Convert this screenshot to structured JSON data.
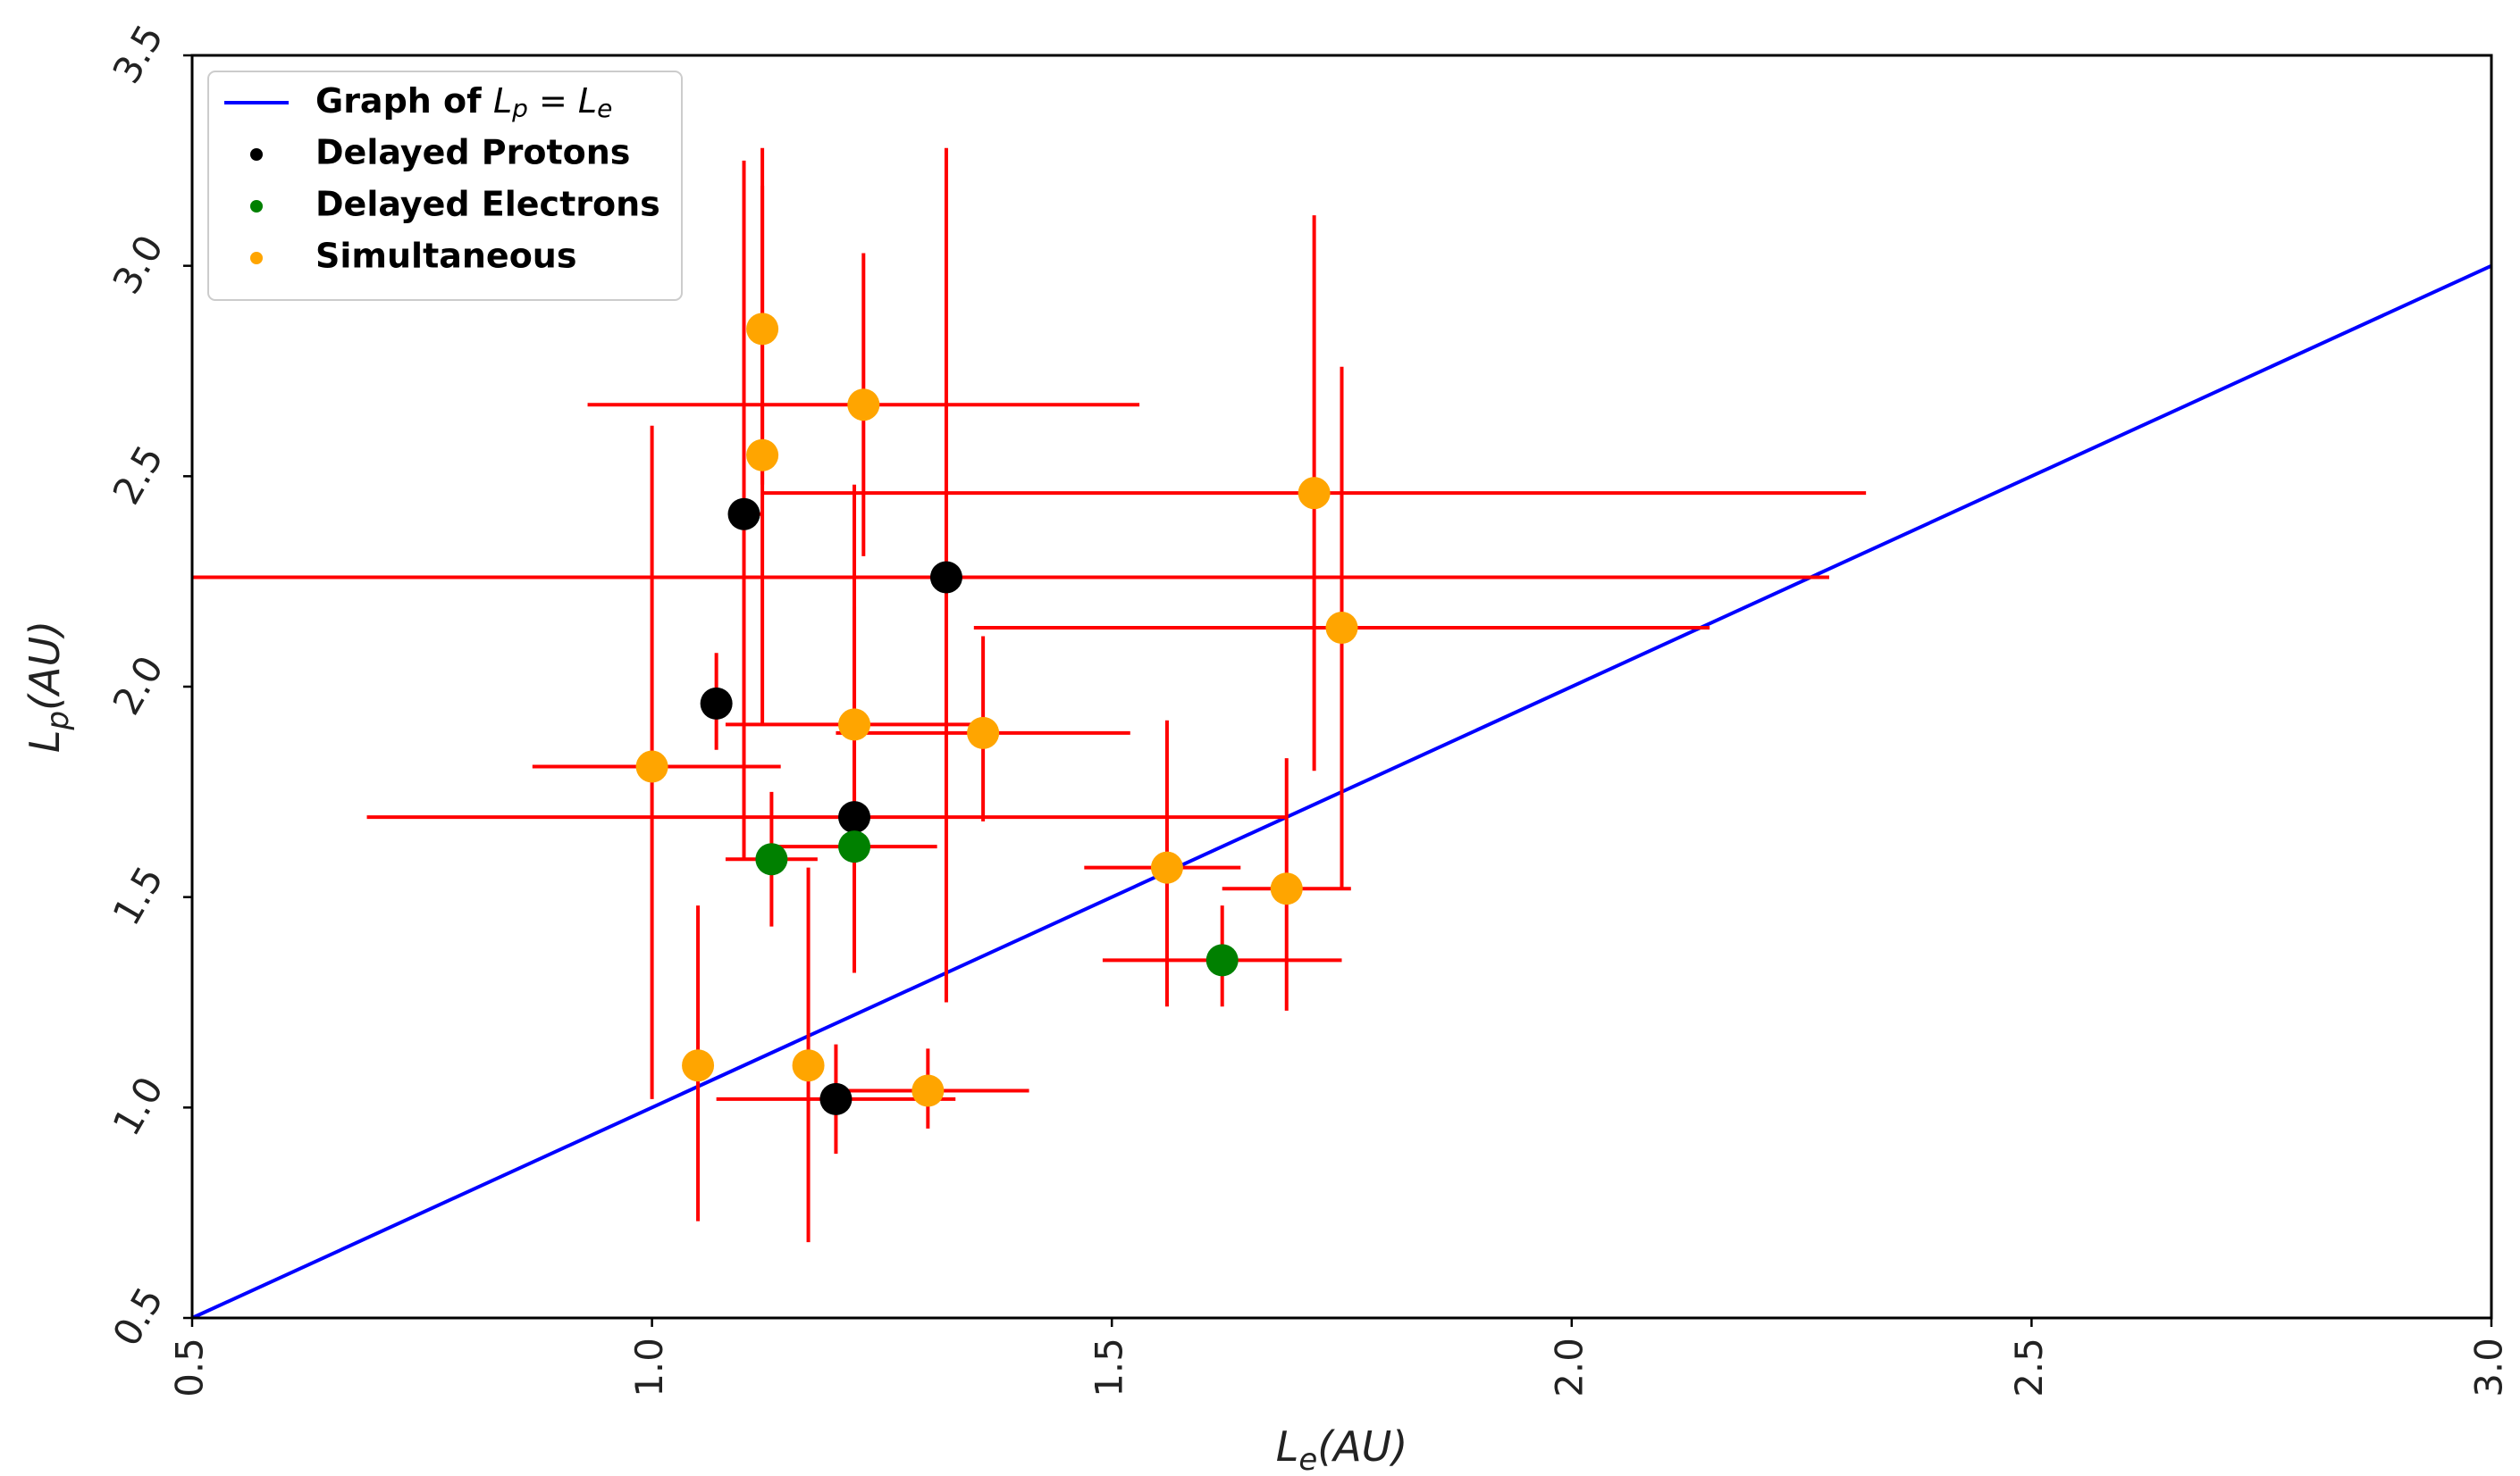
{
  "chart_data": {
    "type": "scatter",
    "xlabel": "L_e(AU)",
    "ylabel": "L_p(AU)",
    "xlim": [
      0.5,
      3.0
    ],
    "ylim": [
      0.5,
      3.5
    ],
    "xticks": [
      "0.5",
      "1.0",
      "1.5",
      "2.0",
      "2.5",
      "3.0"
    ],
    "yticks": [
      "0.5",
      "1.0",
      "1.5",
      "2.0",
      "2.5",
      "3.0",
      "3.5"
    ],
    "tick_values_x": [
      0.5,
      1.0,
      1.5,
      2.0,
      2.5,
      3.0
    ],
    "tick_values_y": [
      0.5,
      1.0,
      1.5,
      2.0,
      2.5,
      3.0,
      3.5
    ],
    "grid": false,
    "legend_position": "top-left",
    "errorbar_color": "#ff0000",
    "reference_line": {
      "name": "Graph of L_p = L_e",
      "color": "#0000ff",
      "x": [
        0.5,
        3.0
      ],
      "y": [
        0.5,
        3.0
      ]
    },
    "series": [
      {
        "name": "Delayed Protons",
        "color": "#000000",
        "points": [
          {
            "x": 1.1,
            "y": 2.41,
            "xerr": [
              1.1,
              1.12
            ],
            "yerr": [
              1.59,
              3.25
            ]
          },
          {
            "x": 1.32,
            "y": 2.26,
            "xerr": [
              0.5,
              2.28
            ],
            "yerr": [
              1.25,
              3.28
            ]
          },
          {
            "x": 1.07,
            "y": 1.96,
            "xerr": [
              1.07,
              1.07
            ],
            "yerr": [
              1.85,
              2.08
            ]
          },
          {
            "x": 1.22,
            "y": 1.69,
            "xerr": [
              0.69,
              1.69
            ],
            "yerr": [
              1.6,
              1.75
            ]
          },
          {
            "x": 1.2,
            "y": 1.02,
            "xerr": [
              1.07,
              1.33
            ],
            "yerr": [
              0.89,
              1.15
            ]
          }
        ]
      },
      {
        "name": "Delayed Electrons",
        "color": "#008000",
        "points": [
          {
            "x": 1.13,
            "y": 1.59,
            "xerr": [
              1.08,
              1.18
            ],
            "yerr": [
              1.43,
              1.75
            ]
          },
          {
            "x": 1.22,
            "y": 1.62,
            "xerr": [
              1.13,
              1.31
            ],
            "yerr": [
              1.32,
              2.48
            ]
          },
          {
            "x": 1.62,
            "y": 1.35,
            "xerr": [
              1.49,
              1.75
            ],
            "yerr": [
              1.24,
              1.48
            ]
          }
        ]
      },
      {
        "name": "Simultaneous",
        "color": "#ffa500",
        "points": [
          {
            "x": 1.12,
            "y": 2.85,
            "xerr": [
              1.12,
              1.12
            ],
            "yerr": [
              2.48,
              3.28
            ]
          },
          {
            "x": 1.23,
            "y": 2.67,
            "xerr": [
              0.93,
              1.53
            ],
            "yerr": [
              2.31,
              3.03
            ]
          },
          {
            "x": 1.12,
            "y": 2.55,
            "xerr": [
              1.12,
              1.12
            ],
            "yerr": [
              1.91,
              3.19
            ]
          },
          {
            "x": 1.72,
            "y": 2.46,
            "xerr": [
              1.12,
              2.32
            ],
            "yerr": [
              1.8,
              3.12
            ]
          },
          {
            "x": 1.75,
            "y": 2.14,
            "xerr": [
              1.35,
              2.15
            ],
            "yerr": [
              1.52,
              2.76
            ]
          },
          {
            "x": 1.22,
            "y": 1.91,
            "xerr": [
              1.08,
              1.36
            ],
            "yerr": [
              1.63,
              2.19
            ]
          },
          {
            "x": 1.36,
            "y": 1.89,
            "xerr": [
              1.2,
              1.52
            ],
            "yerr": [
              1.68,
              2.12
            ]
          },
          {
            "x": 1.0,
            "y": 1.81,
            "xerr": [
              0.87,
              1.14
            ],
            "yerr": [
              1.02,
              2.62
            ]
          },
          {
            "x": 1.56,
            "y": 1.57,
            "xerr": [
              1.47,
              1.64
            ],
            "yerr": [
              1.24,
              1.92
            ]
          },
          {
            "x": 1.69,
            "y": 1.52,
            "xerr": [
              1.62,
              1.76
            ],
            "yerr": [
              1.23,
              1.83
            ]
          },
          {
            "x": 1.05,
            "y": 1.1,
            "xerr": [
              1.05,
              1.05
            ],
            "yerr": [
              0.73,
              1.48
            ]
          },
          {
            "x": 1.17,
            "y": 1.1,
            "xerr": [
              1.17,
              1.17
            ],
            "yerr": [
              0.68,
              1.57
            ]
          },
          {
            "x": 1.3,
            "y": 1.04,
            "xerr": [
              1.2,
              1.41
            ],
            "yerr": [
              0.95,
              1.14
            ]
          }
        ]
      }
    ],
    "legend": [
      {
        "label": "Graph of L_p = L_e",
        "kind": "line",
        "color": "#0000ff"
      },
      {
        "label": "Delayed Protons",
        "kind": "marker",
        "color": "#000000"
      },
      {
        "label": "Delayed Electrons",
        "kind": "marker",
        "color": "#008000"
      },
      {
        "label": "Simultaneous",
        "kind": "marker",
        "color": "#ffa500"
      }
    ]
  }
}
